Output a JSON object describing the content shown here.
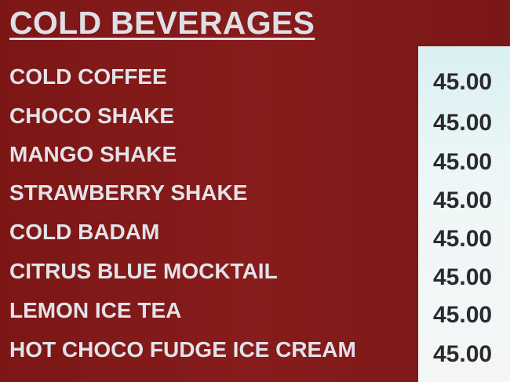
{
  "title": "COLD BEVERAGES",
  "items": [
    {
      "name": "COLD COFFEE",
      "price": "45.00"
    },
    {
      "name": "CHOCO SHAKE",
      "price": "45.00"
    },
    {
      "name": "MANGO SHAKE",
      "price": "45.00"
    },
    {
      "name": "STRAWBERRY SHAKE",
      "price": "45.00"
    },
    {
      "name": "COLD BADAM",
      "price": "45.00"
    },
    {
      "name": "CITRUS BLUE MOCKTAIL",
      "price": "45.00"
    },
    {
      "name": "LEMON ICE TEA",
      "price": "45.00"
    },
    {
      "name": "HOT CHOCO FUDGE ICE CREAM",
      "price": "45.00"
    }
  ],
  "colors": {
    "board": "#821a19",
    "text": "#e2e3e8",
    "price_panel": "#eef7f7",
    "price_text": "#2a2a30"
  }
}
